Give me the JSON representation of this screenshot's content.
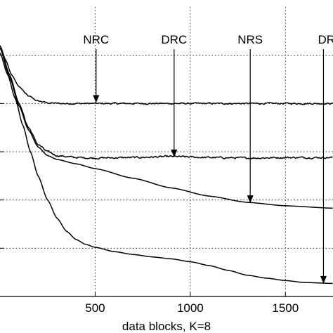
{
  "chart_data": {
    "type": "line",
    "xlabel": "data blocks, K=8",
    "ylabel": "",
    "title": "",
    "xlim": [
      0,
      1750
    ],
    "ylim": [
      0,
      6
    ],
    "xticks": [
      500,
      1000,
      1500
    ],
    "xtick_labels": [
      "500",
      "1000",
      "1500"
    ],
    "yticks": [
      1,
      2,
      3,
      4,
      5
    ],
    "grid": true,
    "series": [
      {
        "name": "NRC",
        "x": [
          0,
          30,
          60,
          100,
          150,
          200,
          260,
          320,
          400,
          500,
          700,
          900,
          1100,
          1300,
          1500,
          1750
        ],
        "y": [
          5.2,
          4.9,
          4.6,
          4.35,
          4.15,
          4.05,
          4.01,
          4.0,
          4.0,
          4.0,
          4.0,
          4.0,
          4.0,
          4.0,
          4.0,
          4.0
        ],
        "noise": 0.03
      },
      {
        "name": "DRC",
        "x": [
          0,
          50,
          100,
          150,
          200,
          250,
          300,
          400,
          500,
          700,
          900,
          1100,
          1300,
          1500,
          1750
        ],
        "y": [
          5.2,
          4.6,
          4.0,
          3.5,
          3.15,
          3.0,
          2.92,
          2.88,
          2.87,
          2.88,
          2.9,
          2.88,
          2.87,
          2.88,
          2.88
        ],
        "noise": 0.035
      },
      {
        "name": "NRS",
        "x": [
          0,
          50,
          100,
          150,
          200,
          250,
          300,
          400,
          500,
          700,
          900,
          1100,
          1300,
          1500,
          1750
        ],
        "y": [
          5.15,
          4.55,
          3.95,
          3.45,
          3.1,
          2.92,
          2.84,
          2.75,
          2.65,
          2.45,
          2.25,
          2.08,
          1.95,
          1.88,
          1.83
        ],
        "noise": 0
      },
      {
        "name": "DRS",
        "x": [
          0,
          40,
          80,
          120,
          160,
          200,
          250,
          300,
          350,
          400,
          450,
          500,
          600,
          700,
          800,
          900,
          1000,
          1100,
          1200,
          1300,
          1400,
          1500,
          1600,
          1750
        ],
        "y": [
          5.05,
          4.6,
          4.1,
          3.55,
          3.0,
          2.5,
          2.0,
          1.62,
          1.35,
          1.18,
          1.08,
          1.02,
          0.93,
          0.87,
          0.82,
          0.78,
          0.72,
          0.64,
          0.54,
          0.44,
          0.38,
          0.33,
          0.29,
          0.27
        ],
        "noise": 0
      }
    ],
    "annotations": [
      {
        "text": "NRC",
        "x": 505,
        "y": 4.0
      },
      {
        "text": "DRC",
        "x": 915,
        "y": 2.87
      },
      {
        "text": "NRS",
        "x": 1315,
        "y": 1.92
      },
      {
        "text": "DRS",
        "x": 1700,
        "y": 0.25
      }
    ]
  }
}
